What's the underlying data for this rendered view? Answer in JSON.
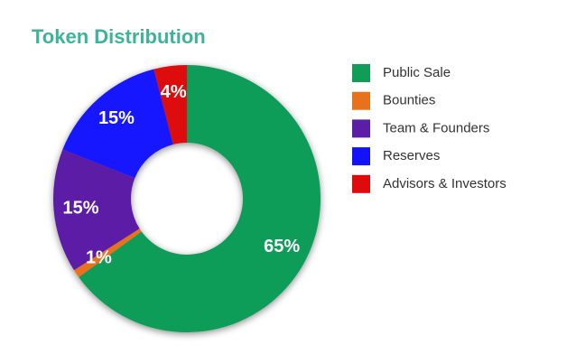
{
  "chart_data": {
    "type": "donut",
    "title": "Token Distribution",
    "series": [
      {
        "name": "Public Sale",
        "color": "#0f9d58",
        "values": [
          65
        ],
        "value_labels": [
          "65%"
        ]
      },
      {
        "name": "Bounties",
        "color": "#e8711c",
        "values": [
          1
        ],
        "value_labels": [
          "1%"
        ]
      },
      {
        "name": "Team & Founders",
        "color": "#5b1ea6",
        "values": [
          15
        ],
        "value_labels": [
          "15%"
        ]
      },
      {
        "name": "Reserves",
        "color": "#1212ff",
        "values": [
          15
        ],
        "value_labels": [
          "15%"
        ]
      },
      {
        "name": "Advisors & Investors",
        "color": "#dd0b0b",
        "values": [
          4
        ],
        "value_labels": [
          "4%"
        ]
      }
    ],
    "legend": "right"
  }
}
